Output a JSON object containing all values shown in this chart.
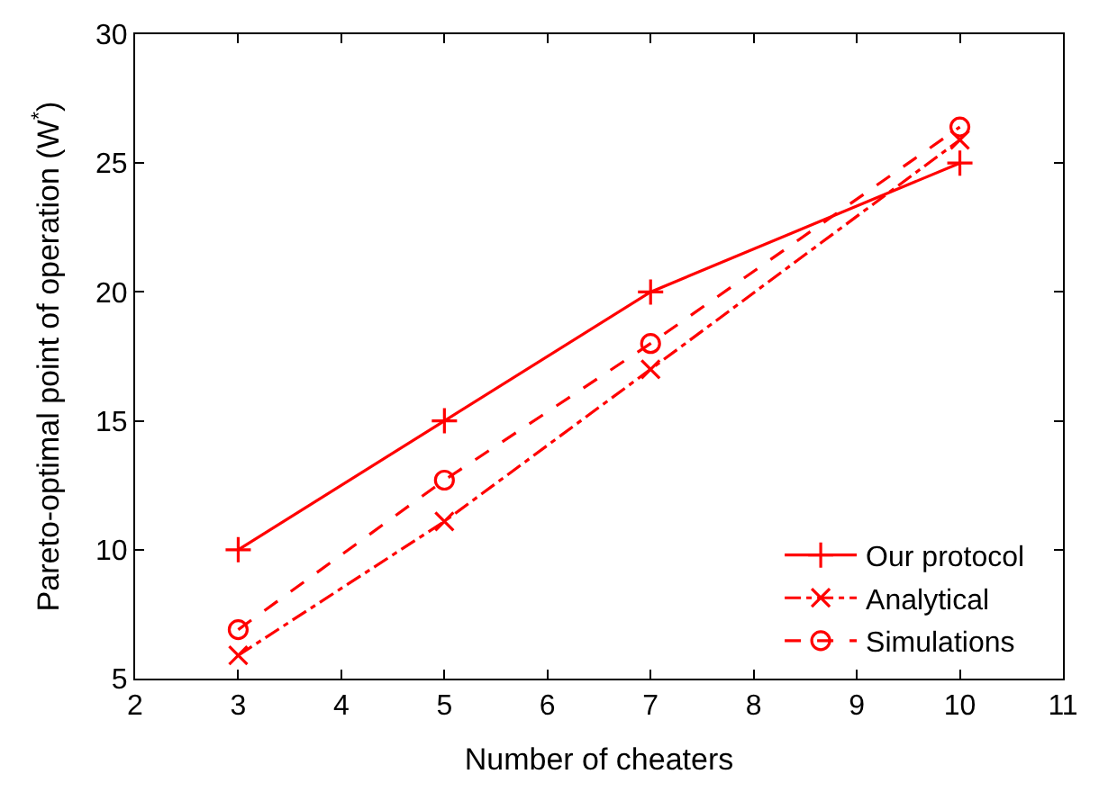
{
  "chart_data": {
    "type": "line",
    "xlabel": "Number of cheaters",
    "ylabel": "Pareto-optimal point of operation (W$^{*}$)",
    "x": [
      3,
      5,
      7,
      10
    ],
    "series": [
      {
        "name": "Our protocol",
        "color": "#ff0000",
        "values": [
          10,
          15,
          20,
          25
        ],
        "marker": "cross",
        "line_style": "solid"
      },
      {
        "name": "Analytical",
        "color": "#ff0000",
        "values": [
          5.9,
          11.1,
          17,
          25.9
        ],
        "marker": "x",
        "line_style": "dashdot"
      },
      {
        "name": "Simulations",
        "color": "#ff0000",
        "values": [
          6.9,
          12.7,
          18,
          26.4
        ],
        "marker": "circle",
        "line_style": "dashed"
      }
    ],
    "xlim": [
      2,
      11
    ],
    "xticks": [
      2,
      3,
      4,
      5,
      6,
      7,
      8,
      9,
      10,
      11
    ],
    "ylim": [
      5,
      30
    ],
    "yticks": [
      5,
      10,
      15,
      20,
      25,
      30
    ],
    "legend": "bottom right"
  }
}
